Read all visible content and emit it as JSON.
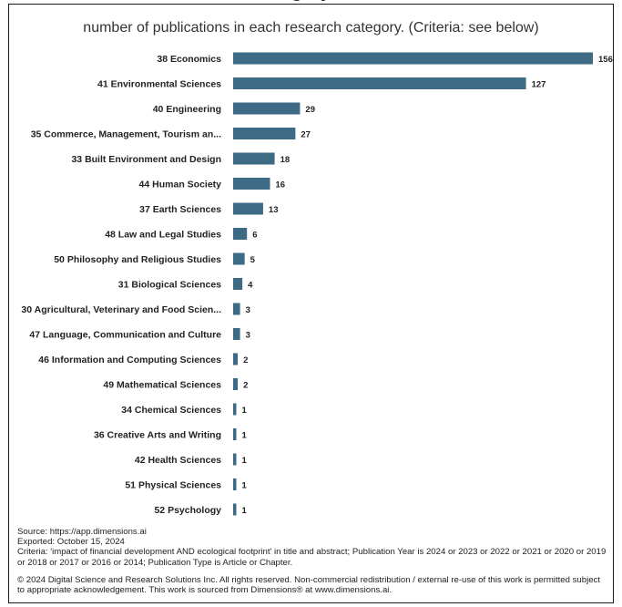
{
  "chart_data": {
    "type": "bar",
    "orientation": "horizontal",
    "title": "",
    "subtitle": "number of publications in each research category. (Criteria: see below)",
    "categories": [
      "38 Economics",
      "41 Environmental Sciences",
      "40 Engineering",
      "35 Commerce, Management, Tourism an...",
      "33 Built Environment and Design",
      "44 Human Society",
      "37 Earth Sciences",
      "48 Law and Legal Studies",
      "50 Philosophy and Religious Studies",
      "31 Biological Sciences",
      "30 Agricultural, Veterinary and Food Scien...",
      "47 Language, Communication and Culture",
      "46 Information and Computing Sciences",
      "49 Mathematical Sciences",
      "34 Chemical Sciences",
      "36 Creative Arts and Writing",
      "42 Health Sciences",
      "51 Physical Sciences",
      "52 Psychology"
    ],
    "values": [
      156,
      127,
      29,
      27,
      18,
      16,
      13,
      6,
      5,
      4,
      3,
      3,
      2,
      2,
      1,
      1,
      1,
      1,
      1
    ],
    "xlim": [
      0,
      156
    ],
    "grid": false,
    "bar_color": "#3d6a85"
  },
  "footer": {
    "source": "Source: https://app.dimensions.ai",
    "exported": "Exported: October 15, 2024",
    "criteria": "Criteria: 'impact of financial development AND ecological footprint' in title and abstract; Publication Year is 2024 or 2023 or 2022 or 2021 or 2020 or 2019 or 2018 or 2017 or 2016 or 2014; Publication Type is Article or Chapter.",
    "copyright": "© 2024 Digital Science and Research Solutions Inc. All rights reserved. Non-commercial redistribution / external re-use of this work is permitted subject to appropriate acknowledgement. This work is sourced from Dimensions® at www.dimensions.ai."
  }
}
